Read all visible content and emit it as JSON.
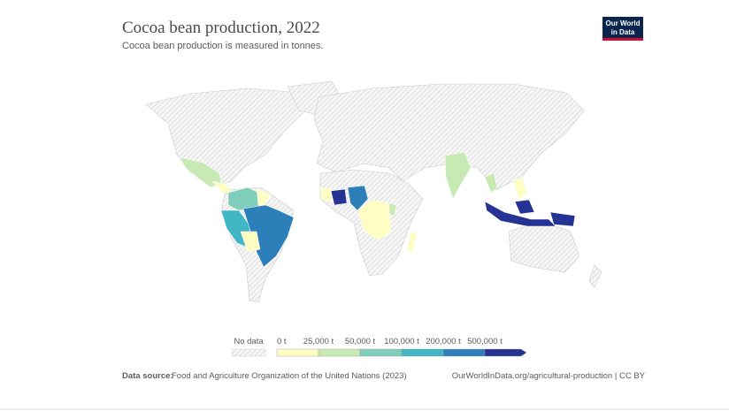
{
  "header": {
    "title": "Cocoa bean production, 2022",
    "subtitle": "Cocoa bean production is measured in tonnes.",
    "logo": [
      "Our World",
      "in Data"
    ]
  },
  "legend": {
    "no_data": "No data",
    "ticks": [
      "0 t",
      "25,000 t",
      "50,000 t",
      "100,000 t",
      "200,000 t",
      "500,000 t"
    ],
    "colors": [
      "#fdfdc4",
      "#c7e9b4",
      "#7fcdbb",
      "#41b6c4",
      "#2c7fb8",
      "#253494"
    ]
  },
  "footer": {
    "source_label": "Data source:",
    "source": "Food and Agriculture Organization of the United Nations (2023)",
    "license": "OurWorldInData.org/agricultural-production | CC BY"
  }
}
